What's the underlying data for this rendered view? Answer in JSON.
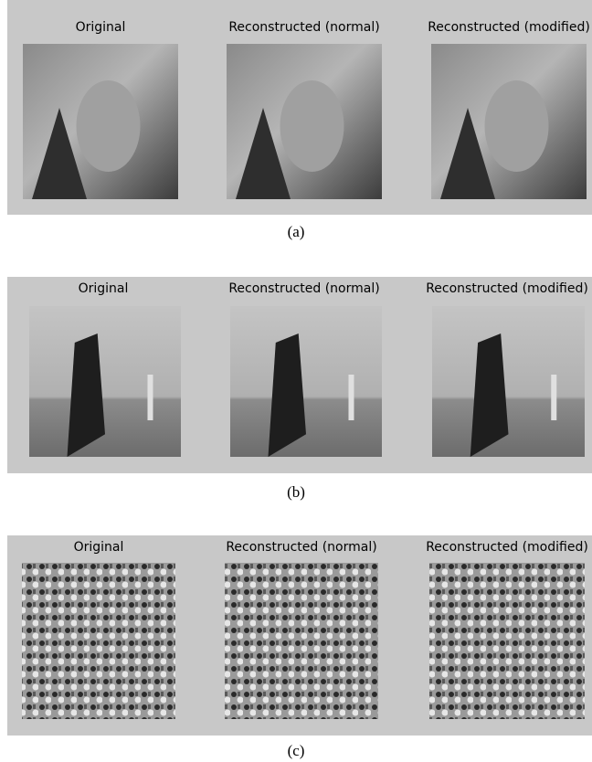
{
  "panels": [
    {
      "titles": [
        "Original",
        "Reconstructed (normal)",
        "Reconstructed (modified)"
      ],
      "caption": "(a)"
    },
    {
      "titles": [
        "Original",
        "Reconstructed (normal)",
        "Reconstructed (modified)"
      ],
      "caption": "(b)"
    },
    {
      "titles": [
        "Original",
        "Reconstructed (normal)",
        "Reconstructed (modified)"
      ],
      "caption": "(c)"
    }
  ]
}
